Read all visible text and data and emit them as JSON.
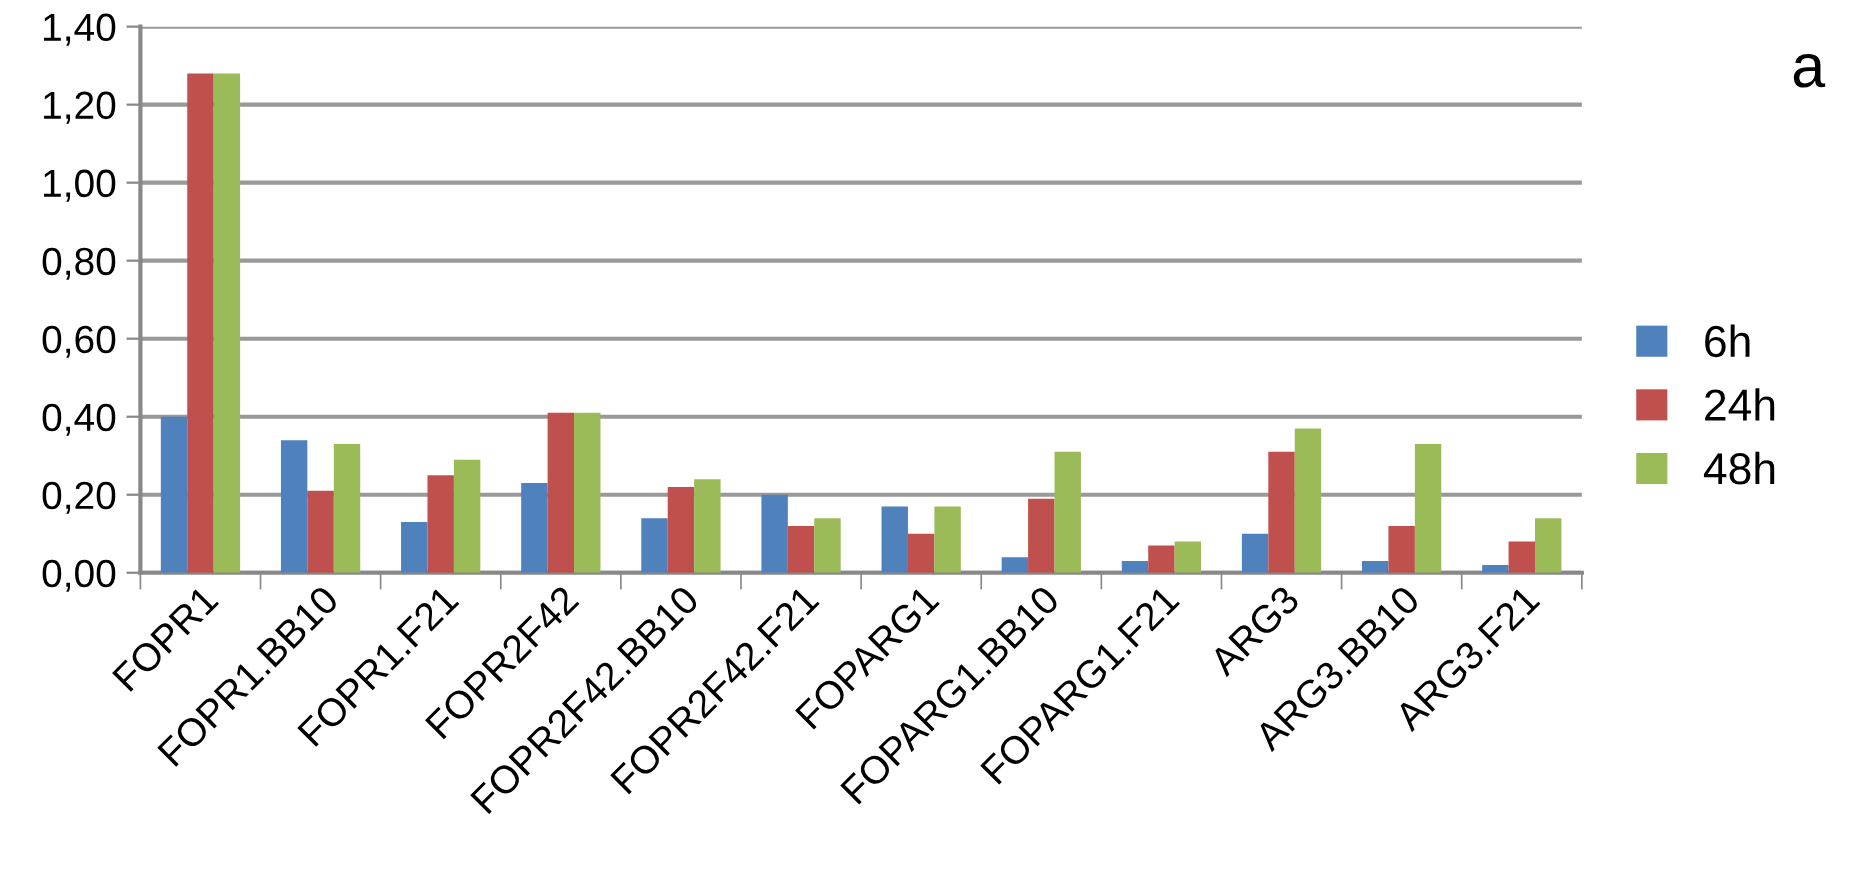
{
  "chart_data": {
    "type": "bar",
    "annotations": [
      "a"
    ],
    "categories": [
      "FOPR1",
      "FOPR1.BB10",
      "FOPR1.F21",
      "FOPR2F42",
      "FOPR2F42.BB10",
      "FOPR2F42.F21",
      "FOPARG1",
      "FOPARG1.BB10",
      "FOPARG1.F21",
      "ARG3",
      "ARG3.BB10",
      "ARG3.F21"
    ],
    "series": [
      {
        "name": "6h",
        "color": "#4f81bd",
        "values": [
          0.4,
          0.34,
          0.13,
          0.23,
          0.14,
          0.2,
          0.17,
          0.04,
          0.03,
          0.1,
          0.03,
          0.02
        ]
      },
      {
        "name": "24h",
        "color": "#c0504d",
        "values": [
          1.28,
          0.21,
          0.25,
          0.41,
          0.22,
          0.12,
          0.1,
          0.19,
          0.07,
          0.31,
          0.12,
          0.08
        ]
      },
      {
        "name": "48h",
        "color": "#9bbb59",
        "values": [
          1.28,
          0.33,
          0.29,
          0.41,
          0.24,
          0.14,
          0.17,
          0.31,
          0.08,
          0.37,
          0.33,
          0.14
        ]
      }
    ],
    "ylim": [
      0,
      1.4
    ],
    "yticks": [
      {
        "value": 0,
        "label": "0,00"
      },
      {
        "value": 0.2,
        "label": "0,20"
      },
      {
        "value": 0.4,
        "label": "0,40"
      },
      {
        "value": 0.6,
        "label": "0,60"
      },
      {
        "value": 0.8,
        "label": "0,80"
      },
      {
        "value": 1.0,
        "label": "1,00"
      },
      {
        "value": 1.2,
        "label": "1,20"
      },
      {
        "value": 1.4,
        "label": "1,40"
      }
    ],
    "grid": "y",
    "legend": "right"
  }
}
